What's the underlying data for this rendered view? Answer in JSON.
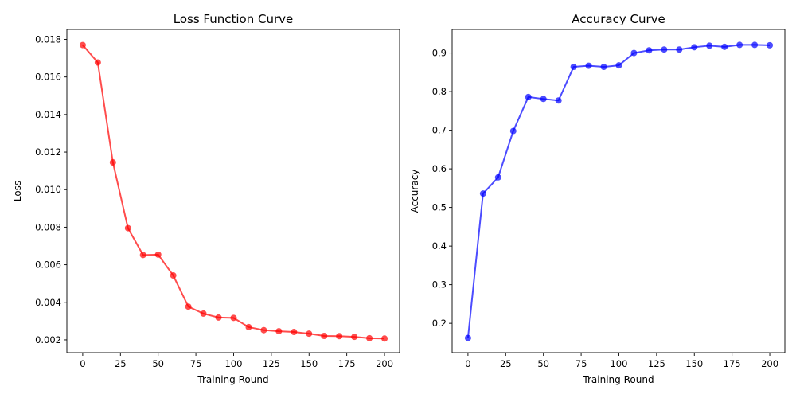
{
  "chart_data": [
    {
      "type": "line",
      "title": "Loss Function Curve",
      "xlabel": "Training Round",
      "ylabel": "Loss",
      "xlim": [
        -10.5,
        210
      ],
      "ylim": [
        0.00132,
        0.01853
      ],
      "xticks": [
        0,
        25,
        50,
        75,
        100,
        125,
        150,
        175,
        200
      ],
      "yticks": [
        0.002,
        0.004,
        0.006,
        0.008,
        0.01,
        0.012,
        0.014,
        0.016,
        0.018
      ],
      "ytick_labels": [
        "0.002",
        "0.004",
        "0.006",
        "0.008",
        "0.010",
        "0.012",
        "0.014",
        "0.016",
        "0.018"
      ],
      "grid": false,
      "color": "#ff0000",
      "x": [
        0,
        10,
        20,
        30,
        40,
        50,
        60,
        70,
        80,
        90,
        100,
        110,
        120,
        130,
        140,
        150,
        160,
        170,
        180,
        190,
        200
      ],
      "values": [
        0.0177,
        0.01677,
        0.01145,
        0.00795,
        0.00652,
        0.00654,
        0.00543,
        0.00377,
        0.0034,
        0.00319,
        0.00317,
        0.00268,
        0.00252,
        0.00246,
        0.00242,
        0.00233,
        0.00221,
        0.0022,
        0.00216,
        0.00209,
        0.00207
      ]
    },
    {
      "type": "line",
      "title": "Accuracy Curve",
      "xlabel": "Training Round",
      "ylabel": "Accuracy",
      "xlim": [
        -10.5,
        210
      ],
      "ylim": [
        0.124,
        0.961
      ],
      "xticks": [
        0,
        25,
        50,
        75,
        100,
        125,
        150,
        175,
        200
      ],
      "yticks": [
        0.2,
        0.3,
        0.4,
        0.5,
        0.6,
        0.7,
        0.8,
        0.9
      ],
      "ytick_labels": [
        "0.2",
        "0.3",
        "0.4",
        "0.5",
        "0.6",
        "0.7",
        "0.8",
        "0.9"
      ],
      "grid": false,
      "color": "#0000ff",
      "x": [
        0,
        10,
        20,
        30,
        40,
        50,
        60,
        70,
        80,
        90,
        100,
        110,
        120,
        130,
        140,
        150,
        160,
        170,
        180,
        190,
        200
      ],
      "values": [
        0.162,
        0.536,
        0.578,
        0.698,
        0.786,
        0.781,
        0.777,
        0.864,
        0.867,
        0.864,
        0.868,
        0.9,
        0.907,
        0.909,
        0.909,
        0.915,
        0.919,
        0.916,
        0.921,
        0.921,
        0.92
      ]
    }
  ]
}
